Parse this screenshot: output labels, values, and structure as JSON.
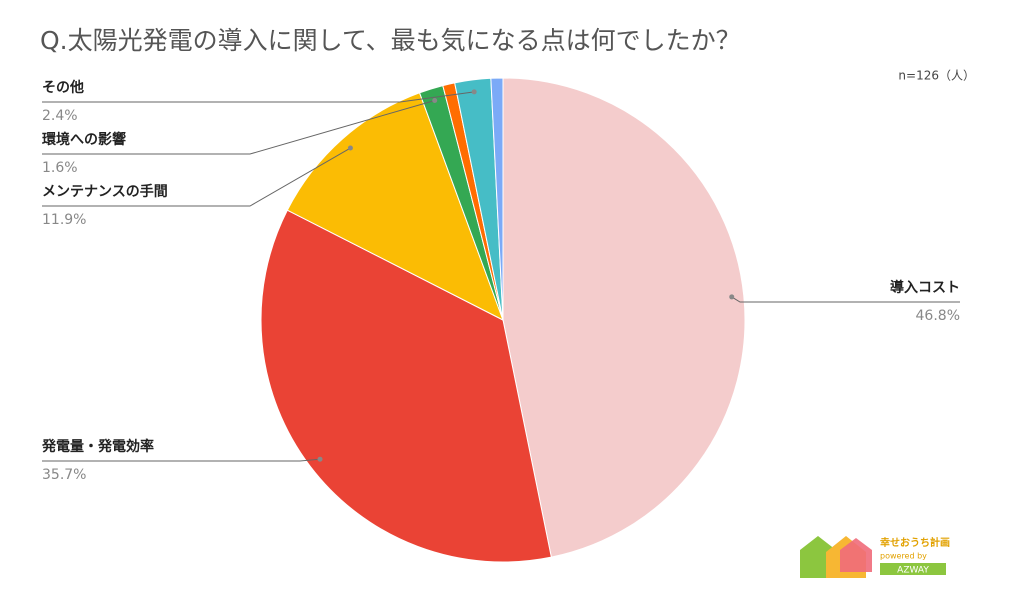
{
  "chart_data": {
    "type": "pie",
    "title": "Q.太陽光発電の導入に関して、最も気になる点は何でしたか？",
    "subtitle": "n=126（人）",
    "categories": [
      "導入コスト",
      "発電量・発電効率",
      "メンテナンスの手間",
      "環境への影響",
      null,
      "その他",
      null
    ],
    "values": [
      46.8,
      35.7,
      11.9,
      1.6,
      0.8,
      2.4,
      0.8
    ],
    "value_labels": [
      "46.8%",
      "35.7%",
      "11.9%",
      "1.6%",
      null,
      "2.4%",
      null
    ],
    "colors": [
      "#f4cccc",
      "#ea4335",
      "#fbbc04",
      "#34a853",
      "#ff6d01",
      "#46bdc6",
      "#7baaf7"
    ]
  },
  "logo": {
    "name": "幸せおうち計画",
    "powered": "powered by",
    "brand": "AZWAY"
  }
}
